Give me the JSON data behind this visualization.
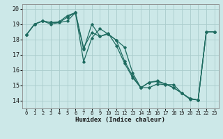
{
  "xlabel": "Humidex (Indice chaleur)",
  "bg_color": "#cce8e8",
  "line_color": "#1e6b60",
  "grid_color": "#aacccc",
  "xlim": [
    -0.5,
    23.5
  ],
  "ylim": [
    13.5,
    20.3
  ],
  "yticks": [
    14,
    15,
    16,
    17,
    18,
    19,
    20
  ],
  "xticks": [
    0,
    1,
    2,
    3,
    4,
    5,
    6,
    7,
    8,
    9,
    10,
    11,
    12,
    13,
    14,
    15,
    16,
    17,
    18,
    19,
    20,
    21,
    22,
    23
  ],
  "lines": [
    {
      "x": [
        0,
        1,
        2,
        3,
        4,
        5,
        6,
        7,
        8,
        9,
        10,
        11,
        12,
        13,
        14,
        15,
        16,
        17,
        18,
        19,
        20,
        21,
        22,
        23
      ],
      "y": [
        18.3,
        19.0,
        19.2,
        19.0,
        19.1,
        19.2,
        19.75,
        16.55,
        18.1,
        18.7,
        18.35,
        17.95,
        17.5,
        15.8,
        14.85,
        14.85,
        15.1,
        15.05,
        15.05,
        14.5,
        14.1,
        14.05,
        18.5,
        18.5
      ]
    },
    {
      "x": [
        0,
        1,
        2,
        3,
        4,
        5,
        6,
        7,
        8,
        9,
        10,
        11,
        12,
        13,
        14,
        15,
        16,
        17,
        18,
        19,
        20,
        21,
        22,
        23
      ],
      "y": [
        18.3,
        19.0,
        19.2,
        19.1,
        19.1,
        19.45,
        19.75,
        17.35,
        19.0,
        18.2,
        18.35,
        17.95,
        16.6,
        15.6,
        14.85,
        15.2,
        15.25,
        15.1,
        14.85,
        14.5,
        14.15,
        14.05,
        18.5,
        18.5
      ]
    },
    {
      "x": [
        0,
        1,
        2,
        3,
        4,
        5,
        6,
        7,
        8,
        9,
        10,
        11,
        12,
        13,
        14,
        15,
        16,
        17,
        18,
        19,
        20,
        21,
        22,
        23
      ],
      "y": [
        18.3,
        19.0,
        19.2,
        19.1,
        19.15,
        19.55,
        19.75,
        17.45,
        18.45,
        18.2,
        18.4,
        17.6,
        16.45,
        15.5,
        14.85,
        15.2,
        15.3,
        15.1,
        14.85,
        14.5,
        14.15,
        14.05,
        18.5,
        18.5
      ]
    }
  ]
}
